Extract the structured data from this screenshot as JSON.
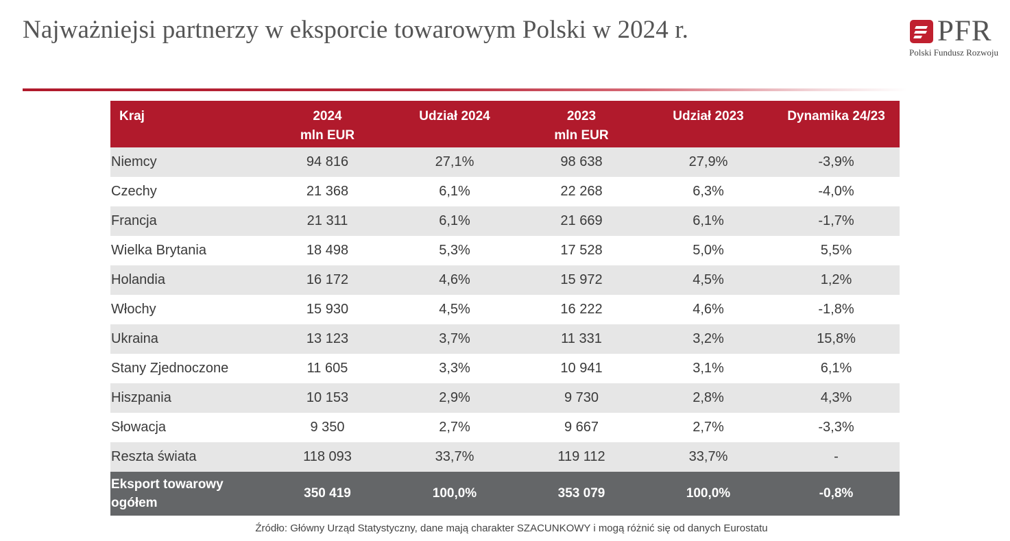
{
  "title": "Najważniejsi partnerzy w eksporcie towarowym Polski w 2024 r.",
  "logo": {
    "name": "PFR",
    "subtitle": "Polski Fundusz Rozwoju",
    "icon": "pfr-logo-mark",
    "color": "#c0202f"
  },
  "colors": {
    "accent": "#b11a2c",
    "total_row": "#646668",
    "alt_row": "#e6e6e6"
  },
  "table": {
    "headers": [
      {
        "line1": "Kraj",
        "line2": ""
      },
      {
        "line1": "2024",
        "line2": "mln EUR"
      },
      {
        "line1": "Udział 2024",
        "line2": ""
      },
      {
        "line1": "2023",
        "line2": "mln EUR"
      },
      {
        "line1": "Udział 2023",
        "line2": ""
      },
      {
        "line1": "Dynamika 24/23",
        "line2": ""
      }
    ],
    "rows": [
      [
        "Niemcy",
        "94 816",
        "27,1%",
        "98 638",
        "27,9%",
        "-3,9%"
      ],
      [
        "Czechy",
        "21 368",
        "6,1%",
        "22 268",
        "6,3%",
        "-4,0%"
      ],
      [
        "Francja",
        "21 311",
        "6,1%",
        "21 669",
        "6,1%",
        "-1,7%"
      ],
      [
        "Wielka Brytania",
        "18 498",
        "5,3%",
        "17 528",
        "5,0%",
        "5,5%"
      ],
      [
        "Holandia",
        "16 172",
        "4,6%",
        "15 972",
        "4,5%",
        "1,2%"
      ],
      [
        "Włochy",
        "15 930",
        "4,5%",
        "16 222",
        "4,6%",
        "-1,8%"
      ],
      [
        "Ukraina",
        "13 123",
        "3,7%",
        "11 331",
        "3,2%",
        "15,8%"
      ],
      [
        "Stany Zjednoczone",
        "11 605",
        "3,3%",
        "10 941",
        "3,1%",
        "6,1%"
      ],
      [
        "Hiszpania",
        "10 153",
        "2,9%",
        "9 730",
        "2,8%",
        "4,3%"
      ],
      [
        "Słowacja",
        "9 350",
        "2,7%",
        "9 667",
        "2,7%",
        "-3,3%"
      ],
      [
        "Reszta świata",
        "118 093",
        "33,7%",
        "119 112",
        "33,7%",
        "-"
      ]
    ],
    "total": {
      "label_line1": "Eksport towarowy",
      "label_line2": "ogółem",
      "values": [
        "350 419",
        "100,0%",
        "353 079",
        "100,0%",
        "-0,8%"
      ]
    }
  },
  "footnote": "Źródło: Główny Urząd Statystyczny, dane mają charakter SZACUNKOWY i mogą różnić się od danych Eurostatu"
}
